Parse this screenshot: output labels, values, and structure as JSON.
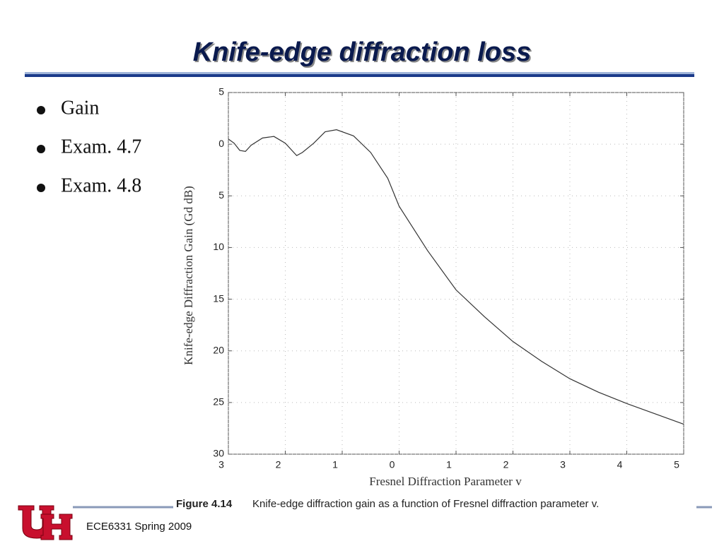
{
  "title": "Knife-edge diffraction loss",
  "bullets": [
    "Gain",
    "Exam. 4.7",
    "Exam. 4.8"
  ],
  "caption": {
    "figure_label": "Figure 4.14",
    "text": "Knife-edge diffraction gain as a function of Fresnel diffraction parameter v."
  },
  "footer": "ECE6331 Spring 2009",
  "chart_data": {
    "type": "line",
    "xlabel": "Fresnel Diffraction Parameter v",
    "ylabel": "Knife-edge Diffraction Gain (Gd dB)",
    "x": [
      -3,
      -2.9,
      -2.8,
      -2.7,
      -2.6,
      -2.4,
      -2.2,
      -2,
      -1.8,
      -1.7,
      -1.5,
      -1.3,
      -1.1,
      -0.8,
      -0.5,
      -0.2,
      0,
      0.5,
      1,
      1.5,
      2,
      2.5,
      3,
      3.5,
      4,
      4.5,
      5
    ],
    "values": [
      0.5,
      0.1,
      -0.6,
      -0.7,
      -0.1,
      0.6,
      0.75,
      0.1,
      -1.1,
      -0.8,
      0.1,
      1.2,
      1.4,
      0.8,
      -0.8,
      -3.3,
      -6,
      -10.3,
      -14.1,
      -16.7,
      -19.1,
      -21,
      -22.7,
      -24,
      -25.1,
      -26.1,
      -27.1
    ],
    "color": "#333333",
    "xlim": [
      -3,
      5
    ],
    "xticks": [
      {
        "value": -3,
        "label": "3"
      },
      {
        "value": -2,
        "label": "2"
      },
      {
        "value": -1,
        "label": "1"
      },
      0,
      1,
      2,
      3,
      4,
      5
    ],
    "ylim": [
      -30,
      5
    ],
    "yticks": [
      5,
      0,
      {
        "value": -5,
        "label": "5"
      },
      {
        "value": -10,
        "label": "10"
      },
      {
        "value": -15,
        "label": "15"
      },
      {
        "value": -20,
        "label": "20"
      },
      {
        "value": -25,
        "label": "25"
      },
      {
        "value": -30,
        "label": "30"
      }
    ],
    "grid": true
  }
}
